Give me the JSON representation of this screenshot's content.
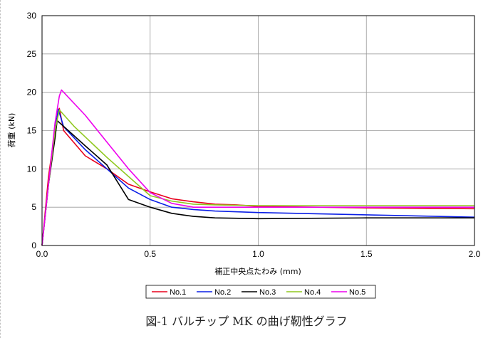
{
  "chart_data": {
    "type": "line",
    "xlabel": "補正中央点たわみ (mm)",
    "ylabel": "荷重 (kN)",
    "xlim": [
      0,
      2.0
    ],
    "ylim": [
      0,
      30
    ],
    "x_ticks": [
      "0.0",
      "0.5",
      "1.0",
      "1.5",
      "2.0"
    ],
    "y_ticks": [
      "0",
      "5",
      "10",
      "15",
      "20",
      "25",
      "30"
    ],
    "grid": true,
    "legend_position": "bottom",
    "series": [
      {
        "name": "No.1",
        "color": "#e8001c",
        "points": [
          [
            0,
            0
          ],
          [
            0.03,
            9
          ],
          [
            0.06,
            15
          ],
          [
            0.08,
            17.9
          ],
          [
            0.1,
            15
          ],
          [
            0.2,
            11.7
          ],
          [
            0.3,
            10.0
          ],
          [
            0.4,
            8.0
          ],
          [
            0.5,
            7.0
          ],
          [
            0.6,
            6.1
          ],
          [
            0.7,
            5.7
          ],
          [
            0.8,
            5.4
          ],
          [
            0.9,
            5.3
          ],
          [
            1.0,
            5.1
          ],
          [
            1.5,
            4.9
          ],
          [
            2.0,
            4.8
          ]
        ]
      },
      {
        "name": "No.2",
        "color": "#0a1ee6",
        "points": [
          [
            0,
            0
          ],
          [
            0.03,
            8
          ],
          [
            0.06,
            15
          ],
          [
            0.075,
            17.8
          ],
          [
            0.1,
            15.5
          ],
          [
            0.2,
            12.5
          ],
          [
            0.3,
            10.0
          ],
          [
            0.4,
            7.5
          ],
          [
            0.5,
            6.0
          ],
          [
            0.6,
            5.0
          ],
          [
            0.7,
            4.7
          ],
          [
            0.8,
            4.5
          ],
          [
            1.0,
            4.3
          ],
          [
            1.5,
            4.0
          ],
          [
            2.0,
            3.7
          ]
        ]
      },
      {
        "name": "No.3",
        "color": "#000000",
        "points": [
          [
            0,
            0
          ],
          [
            0.03,
            8
          ],
          [
            0.06,
            14
          ],
          [
            0.07,
            16.3
          ],
          [
            0.09,
            15.8
          ],
          [
            0.2,
            13.0
          ],
          [
            0.3,
            10.5
          ],
          [
            0.4,
            6.0
          ],
          [
            0.5,
            5.0
          ],
          [
            0.6,
            4.2
          ],
          [
            0.7,
            3.8
          ],
          [
            0.8,
            3.6
          ],
          [
            1.0,
            3.5
          ],
          [
            1.5,
            3.6
          ],
          [
            2.0,
            3.6
          ]
        ]
      },
      {
        "name": "No.4",
        "color": "#8fc81e",
        "points": [
          [
            0,
            0
          ],
          [
            0.03,
            8
          ],
          [
            0.06,
            15
          ],
          [
            0.08,
            17.7
          ],
          [
            0.15,
            15.5
          ],
          [
            0.3,
            11.5
          ],
          [
            0.5,
            6.5
          ],
          [
            0.6,
            5.8
          ],
          [
            0.7,
            5.4
          ],
          [
            0.8,
            5.3
          ],
          [
            1.0,
            5.2
          ],
          [
            1.5,
            5.2
          ],
          [
            2.0,
            5.2
          ]
        ]
      },
      {
        "name": "No.5",
        "color": "#ee00ee",
        "points": [
          [
            0,
            0
          ],
          [
            0.03,
            8
          ],
          [
            0.06,
            16
          ],
          [
            0.08,
            19.5
          ],
          [
            0.09,
            20.3
          ],
          [
            0.2,
            17.0
          ],
          [
            0.3,
            13.5
          ],
          [
            0.4,
            10.0
          ],
          [
            0.5,
            6.9
          ],
          [
            0.6,
            5.5
          ],
          [
            0.7,
            5.0
          ],
          [
            1.0,
            5.0
          ],
          [
            1.5,
            5.0
          ],
          [
            2.0,
            5.0
          ]
        ]
      }
    ]
  },
  "caption": "図-1 バルチップ MK の曲げ靭性グラフ"
}
